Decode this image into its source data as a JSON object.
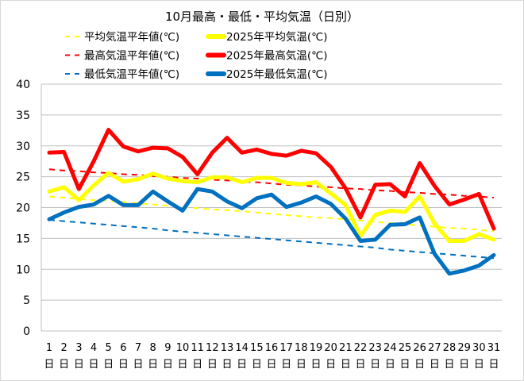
{
  "chart_data": {
    "type": "line",
    "title": "10月最高・最低・平均気温（日別）",
    "xlabel": "",
    "ylabel": "",
    "ylim": [
      0,
      40
    ],
    "yticks": [
      0,
      5,
      10,
      15,
      20,
      25,
      30,
      35,
      40
    ],
    "grid": true,
    "legend_position": "top",
    "x": [
      1,
      2,
      3,
      4,
      5,
      6,
      7,
      8,
      9,
      10,
      11,
      12,
      13,
      14,
      15,
      16,
      17,
      18,
      19,
      20,
      21,
      22,
      23,
      24,
      25,
      26,
      27,
      28,
      29,
      30,
      31
    ],
    "x_tick_suffix": "日",
    "series": [
      {
        "name": "平均気温平年値(℃)",
        "color": "#ffff00",
        "style": "dashed",
        "values": [
          21.8,
          21.6,
          21.4,
          21.2,
          21.1,
          20.9,
          20.7,
          20.5,
          20.3,
          20.1,
          19.9,
          19.7,
          19.6,
          19.4,
          19.2,
          19.0,
          18.8,
          18.6,
          18.4,
          18.3,
          18.1,
          17.9,
          17.7,
          17.5,
          17.3,
          17.1,
          16.9,
          16.7,
          16.6,
          16.4,
          16.2
        ]
      },
      {
        "name": "2025年平均気温(℃)",
        "color": "#ffff00",
        "style": "solid",
        "values": [
          22.6,
          23.3,
          21.2,
          23.6,
          25.6,
          24.2,
          24.6,
          25.5,
          24.7,
          24.3,
          24.1,
          24.9,
          24.9,
          24.1,
          24.8,
          24.8,
          24.0,
          23.8,
          24.1,
          22.3,
          20.4,
          15.4,
          18.8,
          19.5,
          19.3,
          21.8,
          17.4,
          14.6,
          14.6,
          15.7,
          14.8
        ]
      },
      {
        "name": "最高気温平年値(℃)",
        "color": "#ff0000",
        "style": "dashed",
        "values": [
          26.2,
          26.0,
          25.9,
          25.7,
          25.6,
          25.4,
          25.3,
          25.1,
          25.0,
          24.8,
          24.7,
          24.5,
          24.4,
          24.2,
          24.1,
          23.9,
          23.7,
          23.6,
          23.4,
          23.3,
          23.1,
          23.0,
          22.8,
          22.7,
          22.5,
          22.4,
          22.2,
          22.1,
          21.9,
          21.8,
          21.6
        ]
      },
      {
        "name": "2025年最高気温(℃)",
        "color": "#ff0000",
        "style": "solid",
        "values": [
          28.9,
          29.0,
          23.0,
          27.5,
          32.6,
          29.9,
          29.1,
          29.7,
          29.6,
          28.2,
          25.4,
          28.9,
          31.3,
          28.9,
          29.4,
          28.7,
          28.4,
          29.2,
          28.8,
          26.6,
          23.1,
          18.4,
          23.7,
          23.8,
          21.8,
          27.2,
          23.5,
          20.5,
          21.3,
          22.2,
          16.6
        ]
      },
      {
        "name": "最低気温平年値(℃)",
        "color": "#0070c0",
        "style": "dashed",
        "values": [
          18.0,
          17.8,
          17.6,
          17.4,
          17.2,
          17.0,
          16.8,
          16.6,
          16.3,
          16.1,
          15.9,
          15.7,
          15.5,
          15.3,
          15.1,
          14.9,
          14.7,
          14.5,
          14.3,
          14.1,
          13.9,
          13.7,
          13.5,
          13.2,
          13.0,
          12.8,
          12.6,
          12.4,
          12.2,
          12.0,
          11.8
        ]
      },
      {
        "name": "2025年最低気温(℃)",
        "color": "#0070c0",
        "style": "solid",
        "values": [
          18.1,
          19.2,
          20.1,
          20.5,
          21.9,
          20.4,
          20.4,
          22.6,
          21.0,
          19.5,
          23.0,
          22.6,
          21.0,
          19.9,
          21.5,
          22.1,
          20.1,
          20.8,
          21.8,
          20.6,
          18.2,
          14.6,
          14.8,
          17.2,
          17.3,
          18.4,
          12.5,
          9.3,
          9.8,
          10.6,
          12.3
        ]
      }
    ]
  }
}
